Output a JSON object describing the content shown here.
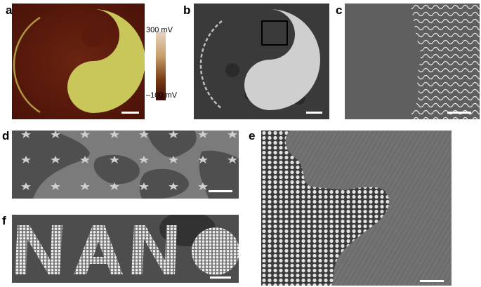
{
  "figure": {
    "panels": [
      {
        "id": "a",
        "label": "a",
        "content": "KPFM map of yin-yang pattern"
      },
      {
        "id": "b",
        "label": "b",
        "content": "SEM image of yin-yang pattern with inset box"
      },
      {
        "id": "c",
        "label": "c",
        "content": "Zoomed SEM of boundary with fingerprint lamellae"
      },
      {
        "id": "d",
        "label": "d",
        "content": "Star-patterned array"
      },
      {
        "id": "e",
        "label": "e",
        "content": "Hexagonal dot array boundary"
      },
      {
        "id": "f",
        "label": "f",
        "content": "Patterned letters"
      }
    ],
    "colorbar": {
      "top_label": "300 mV",
      "bottom_label": "–100 mV",
      "colors": [
        "#e8d3c2",
        "#c9a06a",
        "#7a3b14",
        "#3a0a06"
      ]
    },
    "text_f": [
      "N",
      "A",
      "N",
      "O"
    ],
    "colors": {
      "kpfm_background": "#5a1a0c",
      "kpfm_pattern": "#c9c65a",
      "sem_dark": "#3b3b3b",
      "sem_light": "#cfcfcf",
      "scalebar": "#ffffff"
    }
  }
}
